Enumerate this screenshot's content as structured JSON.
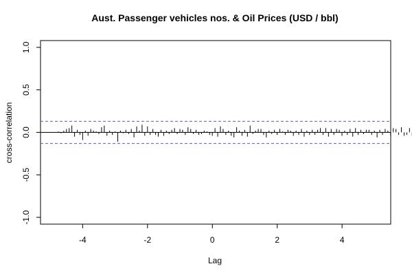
{
  "chart_data": {
    "type": "bar",
    "title": "Aust. Passenger vehicles nos. & Oil Prices (USD / bbl)",
    "xlabel": "Lag",
    "ylabel": "cross-correlation",
    "xlim": [
      -5.3,
      5.5
    ],
    "ylim": [
      -1.08,
      1.08
    ],
    "x_ticks": [
      -4,
      -2,
      0,
      2,
      4
    ],
    "x_tick_labels": [
      "-4",
      "-2",
      "0",
      "2",
      "4"
    ],
    "y_ticks": [
      -1.0,
      -0.5,
      0.0,
      0.5,
      1.0
    ],
    "y_tick_labels": [
      "-1.0",
      "-0.5",
      "0.0",
      "0.5",
      "1.0"
    ],
    "confidence_limit": 0.13,
    "lag_start": -4.75,
    "lag_step": 0.0833,
    "values": [
      0.01,
      -0.01,
      0.02,
      0.04,
      0.05,
      0.08,
      -0.05,
      0.03,
      -0.03,
      -0.09,
      0.02,
      -0.04,
      0.04,
      0.02,
      0.01,
      -0.02,
      0.06,
      0.08,
      -0.04,
      0.02,
      -0.03,
      0.01,
      -0.11,
      0.02,
      -0.01,
      0.03,
      -0.02,
      0.04,
      -0.06,
      0.07,
      0.02,
      0.09,
      -0.04,
      0.07,
      -0.03,
      0.04,
      -0.03,
      -0.05,
      0.03,
      -0.04,
      0.02,
      -0.02,
      0.03,
      0.05,
      -0.02,
      0.04,
      0.03,
      -0.03,
      0.06,
      0.04,
      -0.02,
      0.03,
      -0.03,
      -0.02,
      0.02,
      0.01,
      -0.03,
      -0.04,
      0.05,
      -0.05,
      0.07,
      0.04,
      -0.03,
      0.02,
      -0.04,
      -0.06,
      0.06,
      0.02,
      -0.04,
      0.03,
      -0.05,
      0.08,
      -0.02,
      0.02,
      0.04,
      0.04,
      -0.03,
      -0.06,
      0.02,
      -0.02,
      0.03,
      -0.03,
      0.04,
      0.01,
      -0.03,
      0.03,
      0.02,
      -0.04,
      0.02,
      -0.03,
      0.04,
      -0.05,
      0.02,
      -0.03,
      0.03,
      -0.03,
      0.03,
      0.05,
      -0.03,
      0.05,
      -0.05,
      0.04,
      -0.03,
      0.04,
      0.03,
      -0.04,
      0.02,
      -0.03,
      0.04,
      -0.05,
      0.05,
      -0.03,
      0.03,
      -0.02,
      0.03,
      0.03,
      -0.03,
      0.02,
      -0.06,
      0.03,
      -0.03,
      0.04,
      0.02,
      -0.04,
      0.05,
      0.04,
      -0.03,
      0.06,
      -0.04,
      -0.03,
      0.05,
      -0.04
    ]
  }
}
